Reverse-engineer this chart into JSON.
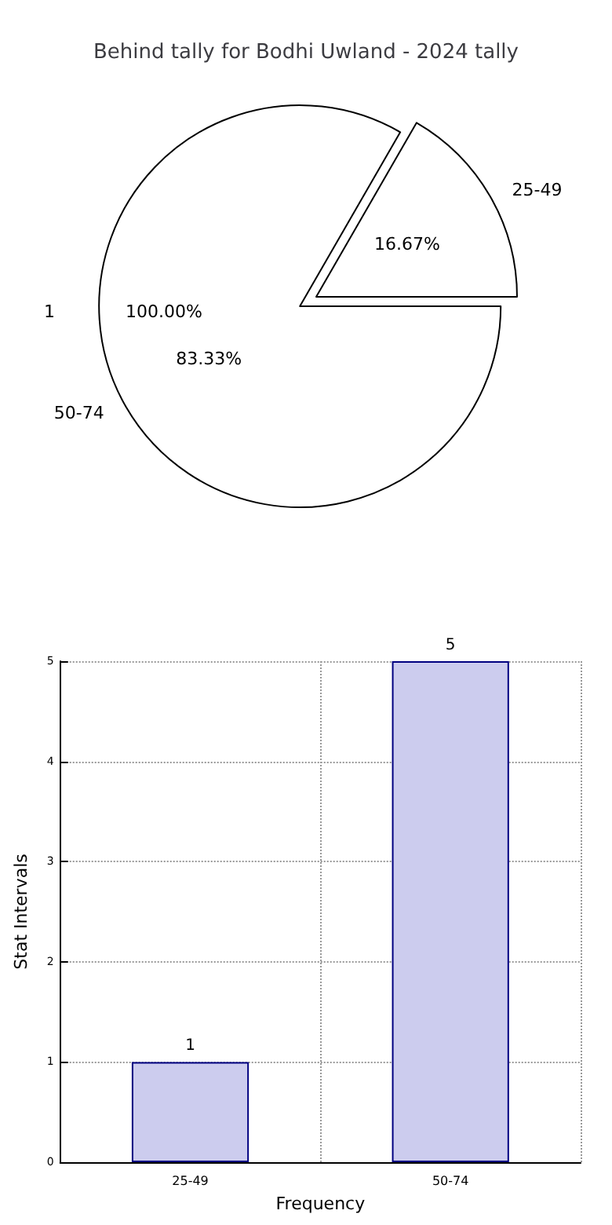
{
  "chart_data": [
    {
      "type": "pie",
      "title": "Behind tally for Bodhi Uwland - 2024 tally",
      "categories": [
        "25-49",
        "50-74"
      ],
      "values": [
        16.67,
        83.33
      ],
      "value_labels": [
        "16.67%",
        "83.33%"
      ],
      "colors": [
        "#ffffff",
        "#ffffff"
      ],
      "annotations": [
        "1",
        "100.00%"
      ]
    },
    {
      "type": "bar",
      "categories": [
        "25-49",
        "50-74"
      ],
      "values": [
        1,
        5
      ],
      "color": "#ccccee",
      "xlabel": "Frequency",
      "ylabel": "Stat Intervals",
      "ylim": [
        0,
        5
      ],
      "yticks": [
        0,
        1,
        2,
        3,
        4,
        5
      ],
      "grid": true,
      "data_labels": true
    }
  ]
}
